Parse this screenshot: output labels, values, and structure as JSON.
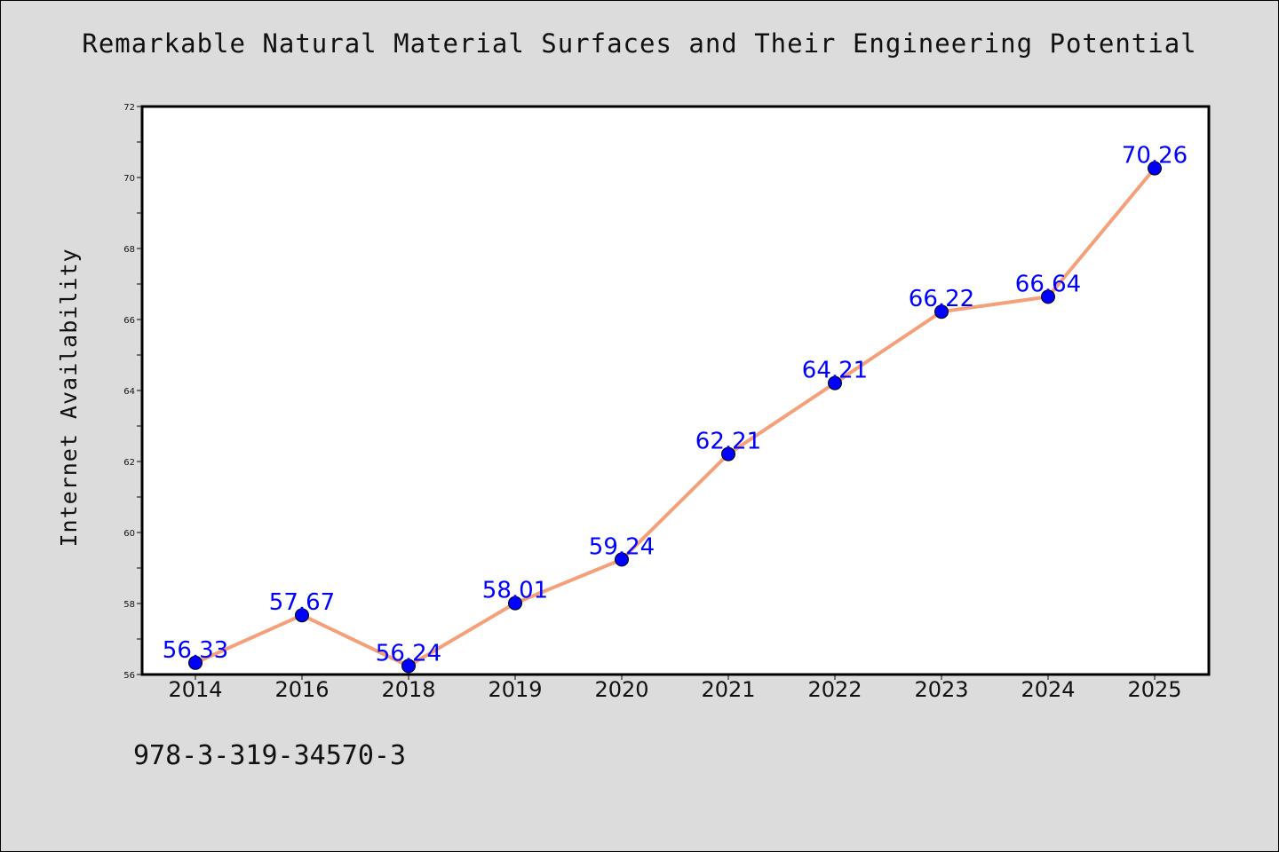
{
  "page": {
    "background": "#dcdcdc",
    "footer_text": "978-3-319-34570-3"
  },
  "chart_data": {
    "type": "line",
    "title": "Remarkable Natural Material Surfaces and Their Engineering Potential",
    "xlabel": "",
    "ylabel": "Internet Availability",
    "categories": [
      "2014",
      "2016",
      "2018",
      "2019",
      "2020",
      "2021",
      "2022",
      "2023",
      "2024",
      "2025"
    ],
    "series": [
      {
        "values": [
          56.33,
          57.67,
          56.24,
          58.01,
          59.24,
          62.21,
          64.21,
          66.22,
          66.64,
          70.26
        ],
        "line_color": "#f4a07a",
        "marker_color": "#0000ff",
        "label_color": "#0000ff"
      }
    ],
    "data_labels": [
      "56.33",
      "57.67",
      "56.24",
      "58.01",
      "59.24",
      "62.21",
      "64.21",
      "66.22",
      "66.64",
      "70.26"
    ],
    "ylim": [
      56,
      72
    ],
    "y_ticks": [
      56,
      58,
      60,
      62,
      64,
      66,
      68,
      70,
      72
    ],
    "grid": false,
    "legend": "none"
  }
}
